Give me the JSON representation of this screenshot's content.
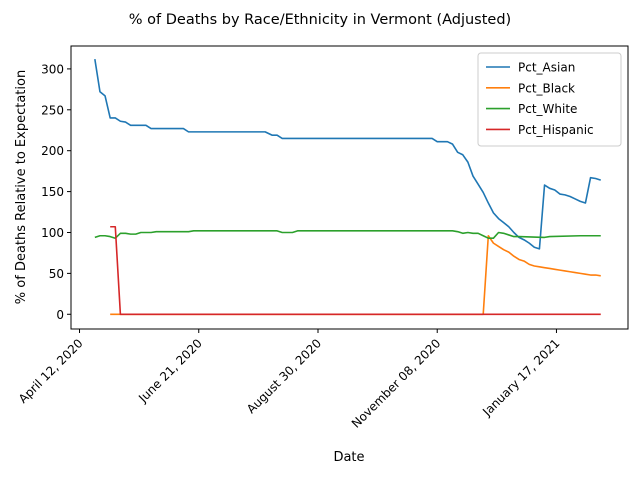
{
  "chart_data": {
    "type": "line",
    "title": "% of Deaths by Race/Ethnicity in Vermont (Adjusted)",
    "xlabel": "Date",
    "ylabel": "% of Deaths Relative to Expectation",
    "x_range": [
      "2020-04-07",
      "2021-02-28"
    ],
    "ylim": [
      -18,
      328
    ],
    "x_ticks": [
      {
        "date": "2020-04-12",
        "label": "April 12, 2020"
      },
      {
        "date": "2020-06-21",
        "label": "June 21, 2020"
      },
      {
        "date": "2020-08-30",
        "label": "August 30, 2020"
      },
      {
        "date": "2020-11-08",
        "label": "November 08, 2020"
      },
      {
        "date": "2021-01-17",
        "label": "January 17, 2021"
      }
    ],
    "y_ticks": [
      0,
      50,
      100,
      150,
      200,
      250,
      300
    ],
    "grid": false,
    "legend": "top-right",
    "series": [
      {
        "name": "Pct_Asian",
        "color": "#1f77b4",
        "points": [
          [
            "2020-04-21",
            312
          ],
          [
            "2020-04-24",
            272
          ],
          [
            "2020-04-27",
            267
          ],
          [
            "2020-04-30",
            240
          ],
          [
            "2020-05-03",
            240
          ],
          [
            "2020-05-06",
            236
          ],
          [
            "2020-05-09",
            235
          ],
          [
            "2020-05-12",
            231
          ],
          [
            "2020-05-21",
            231
          ],
          [
            "2020-05-24",
            227
          ],
          [
            "2020-06-12",
            227
          ],
          [
            "2020-06-15",
            223
          ],
          [
            "2020-07-30",
            223
          ],
          [
            "2020-08-03",
            219
          ],
          [
            "2020-08-06",
            219
          ],
          [
            "2020-08-09",
            215
          ],
          [
            "2020-11-05",
            215
          ],
          [
            "2020-11-08",
            211
          ],
          [
            "2020-11-14",
            211
          ],
          [
            "2020-11-17",
            208
          ],
          [
            "2020-11-20",
            198
          ],
          [
            "2020-11-23",
            195
          ],
          [
            "2020-11-26",
            186
          ],
          [
            "2020-11-29",
            169
          ],
          [
            "2020-12-02",
            159
          ],
          [
            "2020-12-05",
            149
          ],
          [
            "2020-12-08",
            136
          ],
          [
            "2020-12-11",
            124
          ],
          [
            "2020-12-14",
            117
          ],
          [
            "2020-12-17",
            112
          ],
          [
            "2020-12-20",
            107
          ],
          [
            "2020-12-23",
            100
          ],
          [
            "2020-12-26",
            94
          ],
          [
            "2020-12-29",
            91
          ],
          [
            "2021-01-01",
            87
          ],
          [
            "2021-01-04",
            82
          ],
          [
            "2021-01-07",
            80
          ],
          [
            "2021-01-10",
            158
          ],
          [
            "2021-01-13",
            154
          ],
          [
            "2021-01-16",
            152
          ],
          [
            "2021-01-19",
            147
          ],
          [
            "2021-01-22",
            146
          ],
          [
            "2021-01-25",
            144
          ],
          [
            "2021-01-28",
            141
          ],
          [
            "2021-01-31",
            138
          ],
          [
            "2021-02-03",
            136
          ],
          [
            "2021-02-06",
            167
          ],
          [
            "2021-02-09",
            166
          ],
          [
            "2021-02-12",
            164
          ]
        ]
      },
      {
        "name": "Pct_Black",
        "color": "#ff7f0e",
        "points": [
          [
            "2020-04-30",
            0
          ],
          [
            "2020-12-05",
            0
          ],
          [
            "2020-12-08",
            96
          ],
          [
            "2020-12-11",
            87
          ],
          [
            "2020-12-14",
            83
          ],
          [
            "2020-12-17",
            79
          ],
          [
            "2020-12-20",
            76
          ],
          [
            "2020-12-23",
            71
          ],
          [
            "2020-12-26",
            67
          ],
          [
            "2020-12-29",
            65
          ],
          [
            "2021-01-01",
            61
          ],
          [
            "2021-01-04",
            59
          ],
          [
            "2021-01-07",
            58
          ],
          [
            "2021-01-10",
            57
          ],
          [
            "2021-01-13",
            56
          ],
          [
            "2021-01-16",
            55
          ],
          [
            "2021-01-19",
            54
          ],
          [
            "2021-01-22",
            53
          ],
          [
            "2021-01-25",
            52
          ],
          [
            "2021-01-28",
            51
          ],
          [
            "2021-01-31",
            50
          ],
          [
            "2021-02-03",
            49
          ],
          [
            "2021-02-06",
            48
          ],
          [
            "2021-02-09",
            48
          ],
          [
            "2021-02-12",
            47
          ]
        ]
      },
      {
        "name": "Pct_White",
        "color": "#2ca02c",
        "points": [
          [
            "2020-04-21",
            94
          ],
          [
            "2020-04-24",
            96
          ],
          [
            "2020-04-27",
            96
          ],
          [
            "2020-04-30",
            95
          ],
          [
            "2020-05-03",
            93
          ],
          [
            "2020-05-06",
            99
          ],
          [
            "2020-05-09",
            99
          ],
          [
            "2020-05-12",
            98
          ],
          [
            "2020-05-15",
            98
          ],
          [
            "2020-05-18",
            100
          ],
          [
            "2020-05-24",
            100
          ],
          [
            "2020-05-27",
            101
          ],
          [
            "2020-06-15",
            101
          ],
          [
            "2020-06-18",
            102
          ],
          [
            "2020-08-06",
            102
          ],
          [
            "2020-08-09",
            100
          ],
          [
            "2020-08-15",
            100
          ],
          [
            "2020-08-18",
            102
          ],
          [
            "2020-11-17",
            102
          ],
          [
            "2020-11-20",
            101
          ],
          [
            "2020-11-23",
            99
          ],
          [
            "2020-11-26",
            100
          ],
          [
            "2020-11-29",
            99
          ],
          [
            "2020-12-02",
            99
          ],
          [
            "2020-12-05",
            96
          ],
          [
            "2020-12-08",
            93
          ],
          [
            "2020-12-11",
            93
          ],
          [
            "2020-12-14",
            100
          ],
          [
            "2020-12-17",
            99
          ],
          [
            "2020-12-20",
            97
          ],
          [
            "2020-12-23",
            95
          ],
          [
            "2020-12-26",
            95
          ],
          [
            "2021-01-10",
            94
          ],
          [
            "2021-01-13",
            95
          ],
          [
            "2021-01-31",
            96
          ],
          [
            "2021-02-12",
            96
          ]
        ]
      },
      {
        "name": "Pct_Hispanic",
        "color": "#d62728",
        "points": [
          [
            "2020-04-30",
            107
          ],
          [
            "2020-05-03",
            107
          ],
          [
            "2020-05-06",
            0
          ],
          [
            "2021-02-12",
            0
          ]
        ]
      }
    ]
  }
}
